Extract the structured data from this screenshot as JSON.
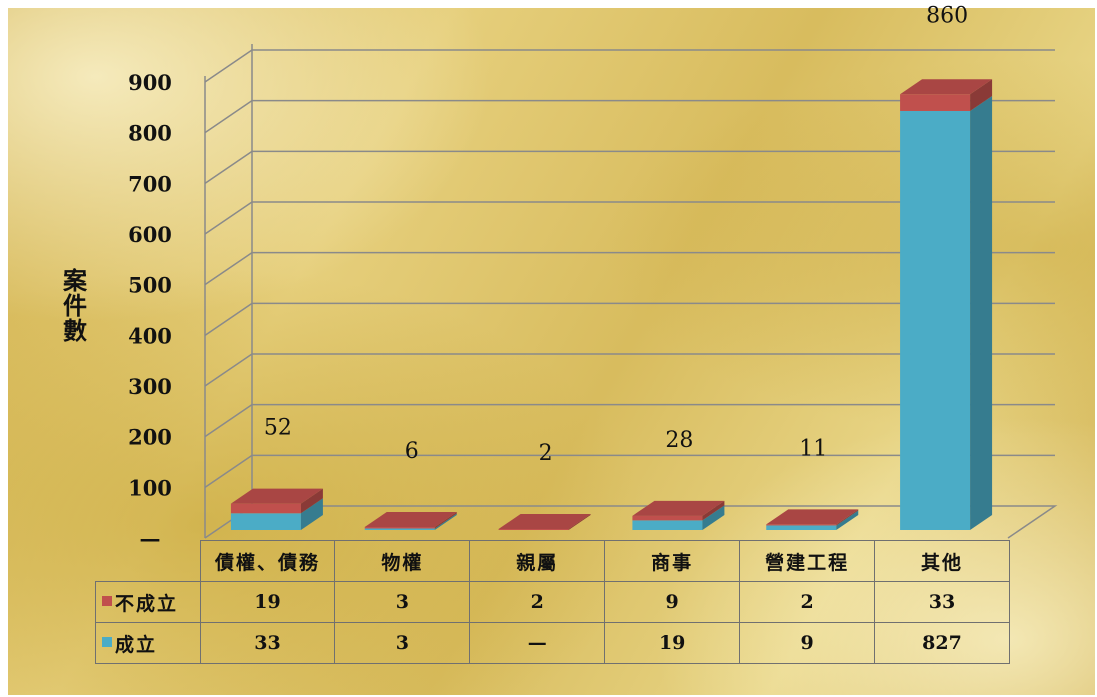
{
  "chart_data": {
    "type": "bar",
    "stacked": true,
    "style": "3d",
    "ylabel": "案件數",
    "ylim": [
      0,
      900
    ],
    "yticks": [
      "—",
      "100",
      "200",
      "300",
      "400",
      "500",
      "600",
      "700",
      "800",
      "900"
    ],
    "categories": [
      "債權、債務",
      "物權",
      "親屬",
      "商事",
      "營建工程",
      "其他"
    ],
    "series": [
      {
        "name": "成立",
        "color": "#4bacc6",
        "values": [
          33,
          3,
          0,
          19,
          9,
          827
        ],
        "table_values": [
          "33",
          "3",
          "—",
          "19",
          "9",
          "827"
        ]
      },
      {
        "name": "不成立",
        "color": "#c0504d",
        "values": [
          19,
          3,
          2,
          9,
          2,
          33
        ],
        "table_values": [
          "19",
          "3",
          "2",
          "9",
          "2",
          "33"
        ]
      }
    ],
    "totals": [
      52,
      6,
      2,
      28,
      11,
      860
    ],
    "grid": true,
    "legend": "data-table"
  }
}
